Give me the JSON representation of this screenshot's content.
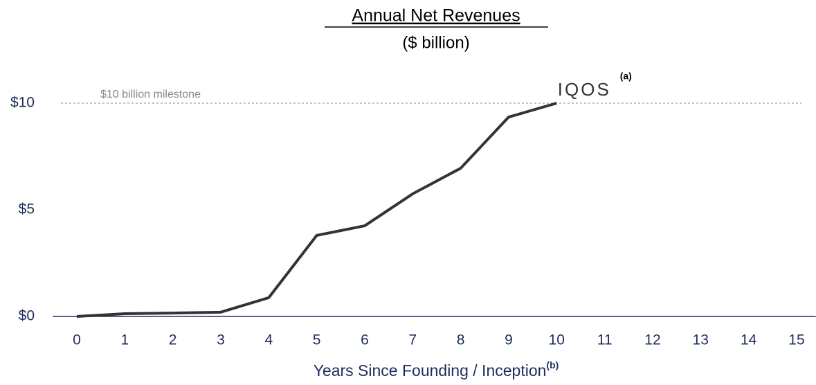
{
  "chart_data": {
    "type": "line",
    "title": "Annual Net Revenues",
    "subtitle": "($ billion)",
    "x_label": "Years Since Founding / Inception",
    "x_label_note": "(b)",
    "x": [
      0,
      1,
      2,
      3,
      4,
      5,
      6,
      7,
      8,
      9,
      10
    ],
    "series": [
      {
        "name": "IQOS",
        "note": "(a)",
        "color": "#333333",
        "values": [
          0,
          0.13,
          0.16,
          0.2,
          0.88,
          3.8,
          4.25,
          5.75,
          6.95,
          9.35,
          10
        ]
      }
    ],
    "xlim": [
      -0.5,
      15.4
    ],
    "xticks": [
      0,
      1,
      2,
      3,
      4,
      5,
      6,
      7,
      8,
      9,
      10,
      11,
      12,
      13,
      14,
      15
    ],
    "ylim": [
      0,
      10
    ],
    "yticks": [
      {
        "value": 0,
        "label": "$0"
      },
      {
        "value": 5,
        "label": "$5"
      },
      {
        "value": 10,
        "label": "$10"
      }
    ],
    "reference_line": {
      "value": 10,
      "label": "$10 billion milestone"
    }
  }
}
